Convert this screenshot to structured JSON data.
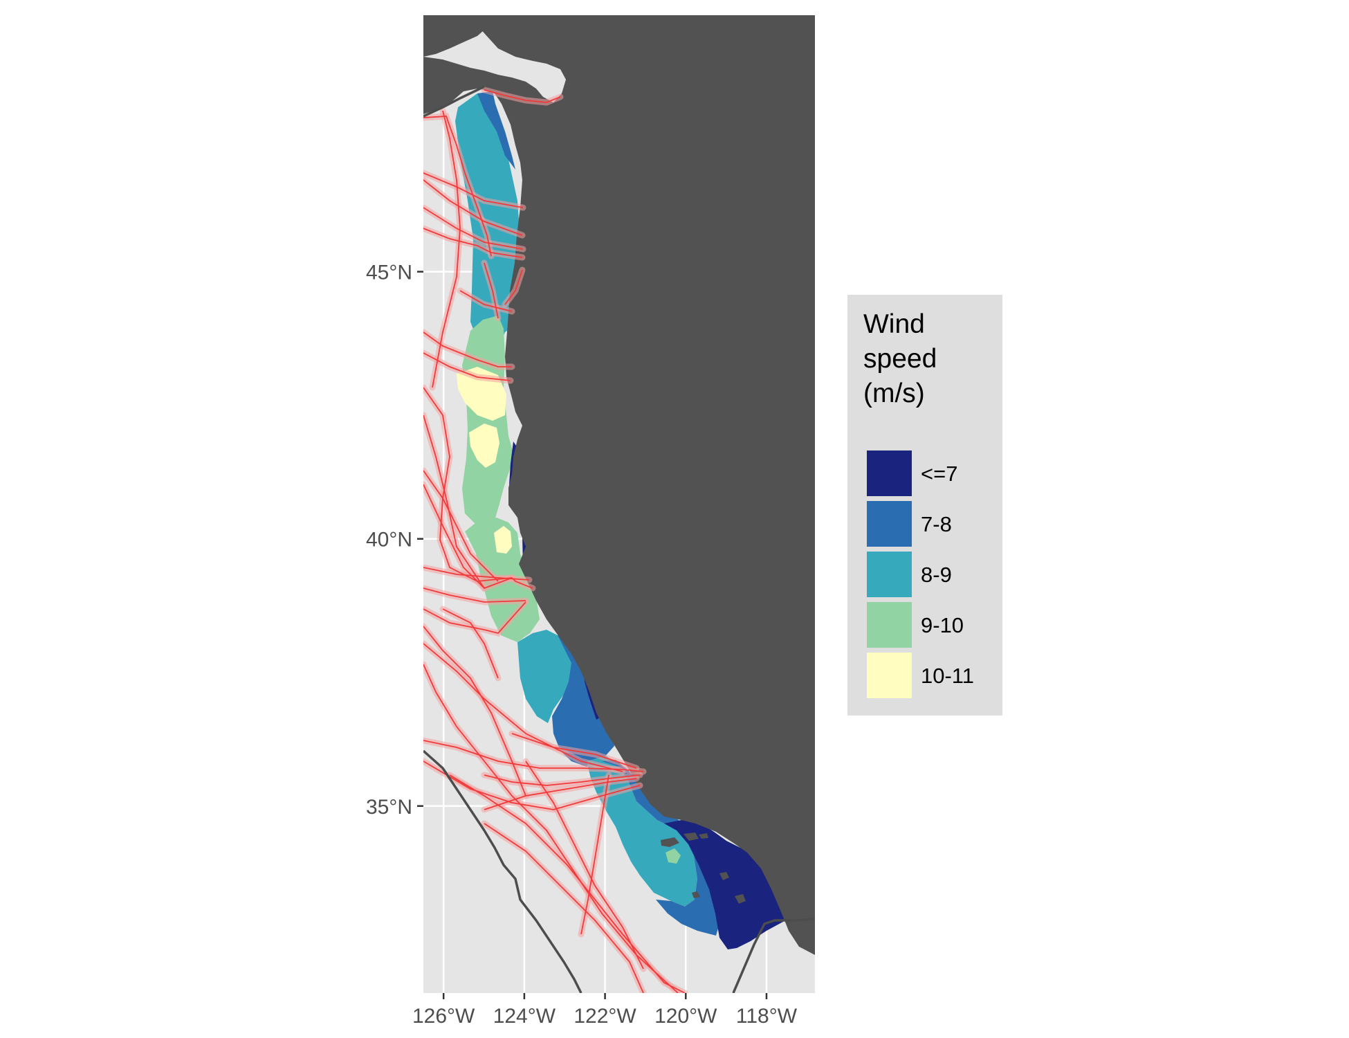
{
  "map": {
    "type": "choropleth-map",
    "region": "U.S. West Coast offshore waters",
    "lon_range": [
      -126.5,
      -116.8
    ],
    "lat_range": [
      31.5,
      49.8
    ],
    "x_axis_ticks": [
      {
        "value": -126,
        "label": "126°W"
      },
      {
        "value": -124,
        "label": "124°W"
      },
      {
        "value": -122,
        "label": "122°W"
      },
      {
        "value": -120,
        "label": "120°W"
      },
      {
        "value": -118,
        "label": "118°W"
      }
    ],
    "y_axis_ticks": [
      {
        "value": 45,
        "label": "45°N"
      },
      {
        "value": 40,
        "label": "40°N"
      },
      {
        "value": 35,
        "label": "35°N"
      }
    ],
    "grid": true,
    "colors": {
      "panel_background": "#e5e5e5",
      "gridline": "#ffffff",
      "land": "#525252",
      "boundary_line": "#4d4d4d",
      "shipping_lane": "#f03a3a",
      "shipping_lane_halo": "#f5a0a0"
    },
    "layers": [
      "wind speed zones",
      "shipping lanes",
      "land",
      "maritime boundary"
    ]
  },
  "legend": {
    "title_lines": [
      "Wind",
      "speed",
      "(m/s)"
    ],
    "background": "#dedede",
    "position": "right",
    "items": [
      {
        "label": "<=7",
        "color": "#1a237e"
      },
      {
        "label": "7-8",
        "color": "#2a6db0"
      },
      {
        "label": "8-9",
        "color": "#37a9bc"
      },
      {
        "label": "9-10",
        "color": "#92d3a4"
      },
      {
        "label": "10-11",
        "color": "#fffdc0"
      }
    ]
  }
}
